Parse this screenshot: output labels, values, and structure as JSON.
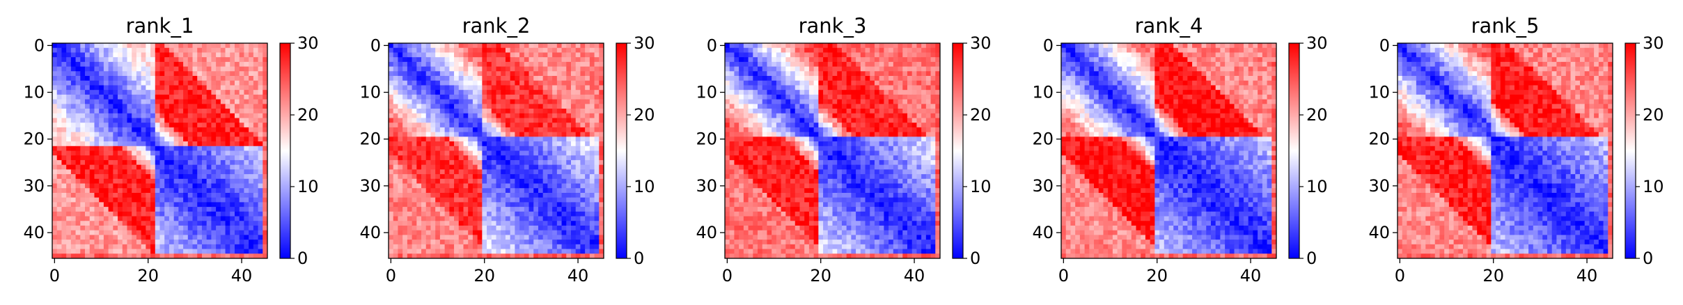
{
  "chart_data": [
    {
      "type": "heatmap",
      "title": "rank_1",
      "grid_size": 46,
      "block_boundary": 22,
      "pattern": {
        "block1_far": 17,
        "block2_far": 12,
        "off_diag_near": 25,
        "off_diag_mid": 28,
        "off_diag_far": 21
      },
      "xticks": [
        0,
        20,
        40
      ],
      "yticks": [
        0,
        10,
        20,
        30,
        40
      ],
      "colorbar": {
        "min": 0,
        "max": 30,
        "ticks": [
          0,
          10,
          20,
          30
        ],
        "colors": [
          "#0000ff",
          "#ffffff",
          "#ff0000"
        ]
      },
      "grid": false,
      "legend": "none"
    },
    {
      "type": "heatmap",
      "title": "rank_2",
      "grid_size": 46,
      "block_boundary": 20,
      "pattern": {
        "block1_far": 24,
        "block2_far": 14,
        "off_diag_near": 25,
        "off_diag_mid": 27,
        "off_diag_far": 22
      },
      "xticks": [
        0,
        20,
        40
      ],
      "yticks": [
        0,
        10,
        20,
        30,
        40
      ],
      "colorbar": {
        "min": 0,
        "max": 30,
        "ticks": [
          0,
          10,
          20,
          30
        ],
        "colors": [
          "#0000ff",
          "#ffffff",
          "#ff0000"
        ]
      },
      "grid": false,
      "legend": "none"
    },
    {
      "type": "heatmap",
      "title": "rank_3",
      "grid_size": 46,
      "block_boundary": 20,
      "pattern": {
        "block1_far": 25,
        "block2_far": 13,
        "off_diag_near": 26,
        "off_diag_mid": 28,
        "off_diag_far": 23
      },
      "xticks": [
        0,
        20,
        40
      ],
      "yticks": [
        0,
        10,
        20,
        30,
        40
      ],
      "colorbar": {
        "min": 0,
        "max": 30,
        "ticks": [
          0,
          10,
          20,
          30
        ],
        "colors": [
          "#0000ff",
          "#ffffff",
          "#ff0000"
        ]
      },
      "grid": false,
      "legend": "none"
    },
    {
      "type": "heatmap",
      "title": "rank_4",
      "grid_size": 46,
      "block_boundary": 20,
      "pattern": {
        "block1_far": 23,
        "block2_far": 11,
        "off_diag_near": 26,
        "off_diag_mid": 29,
        "off_diag_far": 22
      },
      "xticks": [
        0,
        20,
        40
      ],
      "yticks": [
        0,
        10,
        20,
        30,
        40
      ],
      "colorbar": {
        "min": 0,
        "max": 30,
        "ticks": [
          0,
          10,
          20,
          30
        ],
        "colors": [
          "#0000ff",
          "#ffffff",
          "#ff0000"
        ]
      },
      "grid": false,
      "legend": "none"
    },
    {
      "type": "heatmap",
      "title": "rank_5",
      "grid_size": 46,
      "block_boundary": 20,
      "pattern": {
        "block1_far": 24,
        "block2_far": 11,
        "off_diag_near": 25,
        "off_diag_mid": 28,
        "off_diag_far": 22
      },
      "xticks": [
        0,
        20,
        40
      ],
      "yticks": [
        0,
        10,
        20,
        30,
        40
      ],
      "colorbar": {
        "min": 0,
        "max": 30,
        "ticks": [
          0,
          10,
          20,
          30
        ],
        "colors": [
          "#0000ff",
          "#ffffff",
          "#ff0000"
        ]
      },
      "grid": false,
      "legend": "none"
    }
  ]
}
